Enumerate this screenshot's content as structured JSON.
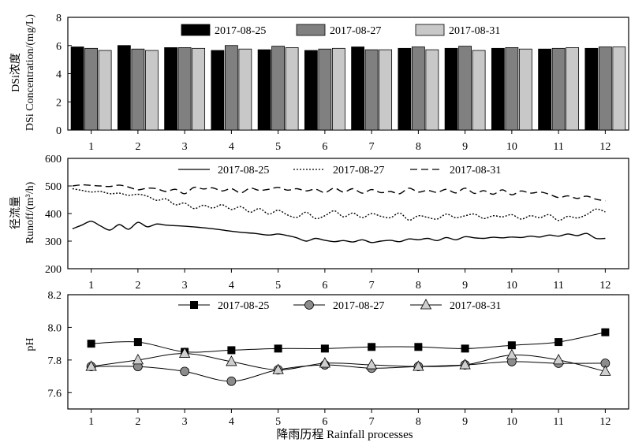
{
  "chart_data": [
    {
      "type": "bar",
      "ylabel_cn": "DSi浓度",
      "ylabel_en": "DSi Concentration/(mg/L)",
      "ylim": [
        0,
        8
      ],
      "yticks": [
        "0",
        "2",
        "4",
        "6",
        "8"
      ],
      "categories": [
        "1",
        "2",
        "3",
        "4",
        "5",
        "6",
        "7",
        "8",
        "9",
        "10",
        "11",
        "12"
      ],
      "series": [
        {
          "name": "2017-08-25",
          "color": "#000000",
          "values": [
            5.9,
            6.0,
            5.85,
            5.65,
            5.7,
            5.65,
            5.9,
            5.8,
            5.8,
            5.8,
            5.75,
            5.8
          ]
        },
        {
          "name": "2017-08-27",
          "color": "#808080",
          "values": [
            5.8,
            5.75,
            5.85,
            6.0,
            5.95,
            5.75,
            5.7,
            5.9,
            5.95,
            5.85,
            5.8,
            5.9
          ]
        },
        {
          "name": "2017-08-31",
          "color": "#c8c8c8",
          "values": [
            5.65,
            5.65,
            5.8,
            5.75,
            5.85,
            5.8,
            5.7,
            5.7,
            5.65,
            5.75,
            5.85,
            5.9
          ]
        }
      ],
      "legend": "top"
    },
    {
      "type": "line",
      "ylabel_cn": "径流量",
      "ylabel_en": "Runoff/(m³/h)",
      "ylim": [
        200,
        600
      ],
      "yticks": [
        "200",
        "300",
        "400",
        "500",
        "600"
      ],
      "xlim": [
        0.55,
        12.45
      ],
      "xticks": [
        "1",
        "2",
        "3",
        "4",
        "5",
        "6",
        "7",
        "8",
        "9",
        "10",
        "11",
        "12"
      ],
      "series": [
        {
          "name": "2017-08-25",
          "style": "solid",
          "x": [
            0.6,
            0.8,
            1.0,
            1.2,
            1.4,
            1.6,
            1.8,
            2.0,
            2.2,
            2.4,
            2.6,
            2.8,
            3.0,
            3.3,
            3.6,
            3.9,
            4.2,
            4.5,
            4.8,
            5.0,
            5.2,
            5.4,
            5.6,
            5.8,
            6.0,
            6.2,
            6.4,
            6.6,
            6.8,
            7.0,
            7.2,
            7.4,
            7.6,
            7.8,
            8.0,
            8.2,
            8.4,
            8.6,
            8.8,
            9.0,
            9.2,
            9.4,
            9.6,
            9.8,
            10.0,
            10.2,
            10.4,
            10.6,
            10.8,
            11.0,
            11.2,
            11.4,
            11.6,
            11.8,
            12.0
          ],
          "y": [
            345,
            358,
            372,
            355,
            340,
            360,
            343,
            368,
            352,
            362,
            358,
            356,
            354,
            350,
            345,
            338,
            332,
            328,
            322,
            326,
            320,
            312,
            300,
            310,
            303,
            298,
            302,
            297,
            305,
            295,
            300,
            303,
            298,
            308,
            305,
            310,
            302,
            313,
            305,
            316,
            312,
            310,
            314,
            312,
            315,
            313,
            318,
            315,
            322,
            318,
            326,
            320,
            328,
            310,
            310
          ]
        },
        {
          "name": "2017-08-27",
          "style": "dotted",
          "x": [
            0.6,
            0.8,
            1.0,
            1.2,
            1.4,
            1.6,
            1.8,
            2.0,
            2.2,
            2.4,
            2.6,
            2.8,
            3.0,
            3.2,
            3.4,
            3.6,
            3.8,
            4.0,
            4.2,
            4.4,
            4.6,
            4.8,
            5.0,
            5.2,
            5.4,
            5.6,
            5.8,
            6.0,
            6.2,
            6.4,
            6.6,
            6.8,
            7.0,
            7.2,
            7.4,
            7.6,
            7.8,
            8.0,
            8.2,
            8.4,
            8.6,
            8.8,
            9.0,
            9.2,
            9.4,
            9.6,
            9.8,
            10.0,
            10.2,
            10.4,
            10.6,
            10.8,
            11.0,
            11.2,
            11.4,
            11.6,
            11.8,
            12.0
          ],
          "y": [
            490,
            484,
            478,
            480,
            472,
            474,
            466,
            470,
            463,
            448,
            453,
            432,
            438,
            418,
            430,
            420,
            432,
            415,
            425,
            405,
            418,
            398,
            412,
            395,
            386,
            405,
            382,
            392,
            410,
            388,
            402,
            385,
            400,
            390,
            385,
            402,
            376,
            392,
            386,
            380,
            398,
            385,
            392,
            398,
            382,
            392,
            388,
            396,
            380,
            392,
            385,
            396,
            375,
            390,
            384,
            396,
            416,
            406
          ]
        },
        {
          "name": "2017-08-31",
          "style": "dashed",
          "x": [
            0.6,
            0.8,
            1.0,
            1.2,
            1.4,
            1.6,
            1.8,
            2.0,
            2.2,
            2.4,
            2.6,
            2.8,
            3.0,
            3.2,
            3.4,
            3.6,
            3.8,
            4.0,
            4.2,
            4.4,
            4.6,
            4.8,
            5.0,
            5.2,
            5.4,
            5.6,
            5.8,
            6.0,
            6.2,
            6.4,
            6.6,
            6.8,
            7.0,
            7.2,
            7.4,
            7.6,
            7.8,
            8.0,
            8.2,
            8.4,
            8.6,
            8.8,
            9.0,
            9.2,
            9.4,
            9.6,
            9.8,
            10.0,
            10.2,
            10.4,
            10.6,
            10.8,
            11.0,
            11.2,
            11.4,
            11.6,
            11.8,
            12.0
          ],
          "y": [
            500,
            504,
            502,
            500,
            498,
            503,
            496,
            486,
            492,
            490,
            480,
            488,
            472,
            495,
            489,
            493,
            482,
            490,
            475,
            492,
            484,
            488,
            495,
            485,
            490,
            482,
            488,
            476,
            492,
            478,
            490,
            474,
            487,
            476,
            480,
            472,
            492,
            478,
            484,
            477,
            488,
            475,
            492,
            473,
            483,
            470,
            486,
            468,
            482,
            474,
            478,
            470,
            458,
            464,
            455,
            463,
            452,
            446
          ]
        }
      ],
      "legend": "top"
    },
    {
      "type": "line",
      "ylabel": "pH",
      "ylim": [
        7.5,
        8.2
      ],
      "yticks": [
        "7.6",
        "7.8",
        "8.0",
        "8.2"
      ],
      "xticks": [
        "1",
        "2",
        "3",
        "4",
        "5",
        "6",
        "7",
        "8",
        "9",
        "10",
        "11",
        "12"
      ],
      "xlabel": "降雨历程 Rainfall processes",
      "series": [
        {
          "name": "2017-08-25",
          "marker": "square",
          "x": [
            1,
            2,
            3,
            4,
            5,
            6,
            7,
            8,
            9,
            10,
            11,
            12
          ],
          "y": [
            7.9,
            7.91,
            7.85,
            7.86,
            7.87,
            7.87,
            7.88,
            7.88,
            7.87,
            7.89,
            7.91,
            7.97
          ]
        },
        {
          "name": "2017-08-27",
          "marker": "circle",
          "x": [
            1,
            2,
            3,
            4,
            5,
            6,
            7,
            8,
            9,
            10,
            11,
            12
          ],
          "y": [
            7.76,
            7.76,
            7.73,
            7.67,
            7.74,
            7.77,
            7.75,
            7.76,
            7.77,
            7.79,
            7.78,
            7.78
          ]
        },
        {
          "name": "2017-08-31",
          "marker": "triangle",
          "x": [
            1,
            2,
            3,
            4,
            5,
            6,
            7,
            8,
            9,
            10,
            11,
            12
          ],
          "y": [
            7.76,
            7.8,
            7.84,
            7.79,
            7.74,
            7.78,
            7.77,
            7.76,
            7.77,
            7.83,
            7.8,
            7.73
          ]
        }
      ],
      "legend": "top"
    }
  ]
}
